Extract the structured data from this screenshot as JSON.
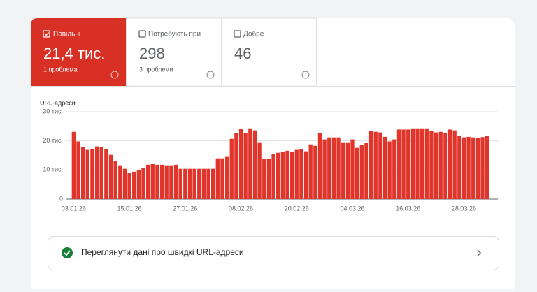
{
  "tabs": [
    {
      "label": "Повільні",
      "value": "21,4 тис.",
      "note": "1 проблема"
    },
    {
      "label": "Потребують при",
      "value": "298",
      "note": "3 проблеми"
    },
    {
      "label": "Добре",
      "value": "46"
    }
  ],
  "chart_data": {
    "type": "bar",
    "y_label": "URL-адреси",
    "color": "#e1352b",
    "categories": [
      "03.01.26",
      null,
      null,
      null,
      null,
      null,
      null,
      null,
      null,
      null,
      null,
      null,
      "15.01.26",
      null,
      null,
      null,
      null,
      null,
      null,
      null,
      null,
      null,
      null,
      null,
      "27.01.26",
      null,
      null,
      null,
      null,
      null,
      null,
      null,
      null,
      null,
      null,
      null,
      "08.02.26",
      null,
      null,
      null,
      null,
      null,
      null,
      null,
      null,
      null,
      null,
      null,
      "20.02.26",
      null,
      null,
      null,
      null,
      null,
      null,
      null,
      null,
      null,
      null,
      null,
      "04.03.26",
      null,
      null,
      null,
      null,
      null,
      null,
      null,
      null,
      null,
      null,
      null,
      "16.03.26",
      null,
      null,
      null,
      null,
      null,
      null,
      null,
      null,
      null,
      null,
      null,
      "28.03.26",
      null,
      null,
      null,
      null,
      null
    ],
    "values": [
      23100,
      19800,
      17800,
      16900,
      17300,
      18100,
      17800,
      17300,
      15200,
      13000,
      11600,
      10400,
      8900,
      9400,
      9900,
      10800,
      11800,
      12000,
      11800,
      11800,
      11600,
      11600,
      11800,
      10400,
      10400,
      10400,
      10400,
      10400,
      10400,
      10400,
      10400,
      14000,
      14000,
      14500,
      20700,
      22700,
      24100,
      22700,
      24300,
      23600,
      19500,
      13700,
      13700,
      15400,
      15900,
      16100,
      16600,
      16100,
      16900,
      17100,
      16400,
      18800,
      18300,
      22700,
      20500,
      21200,
      21200,
      21200,
      19500,
      19500,
      20500,
      17600,
      18600,
      19300,
      23400,
      23100,
      22900,
      21400,
      19800,
      20500,
      23900,
      23900,
      23900,
      24300,
      24300,
      24300,
      24300,
      23400,
      22900,
      23100,
      22700,
      23900,
      23600,
      21700,
      21200,
      21400,
      21200,
      21000,
      21300,
      21600
    ],
    "ylim": [
      0,
      30000
    ],
    "yticks": [
      0,
      {
        "value": 10000,
        "label": "10 тис."
      },
      {
        "value": 20000,
        "label": "20 тис."
      },
      {
        "value": 30000,
        "label": "30 тис."
      }
    ],
    "grid": true
  },
  "link": {
    "label": "Переглянути дані про швидкі URL-адреси"
  }
}
